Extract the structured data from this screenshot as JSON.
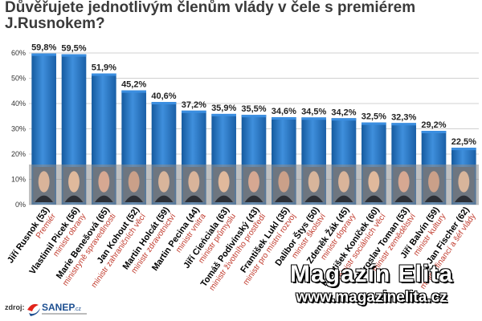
{
  "title": "Důvěřujete jednotlivým členům vlády v čele s premiérem J.Rusnokem?",
  "colors": {
    "bar": "#1f6bb8",
    "bar_top": "#3b8ee0",
    "photo_band": "#8c8c8c",
    "name": "#000000",
    "role": "#c0392b"
  },
  "chart_data": {
    "type": "bar",
    "title": "Důvěřujete jednotlivým členům vlády v čele s premiérem J.Rusnokem?",
    "ylim": [
      0,
      60
    ],
    "yticks": [
      "0%",
      "10%",
      "20%",
      "30%",
      "40%",
      "50%",
      "60%"
    ],
    "grid": true,
    "categories": [
      "Jiří Rusnok (53)",
      "Vlastimil Picek (56)",
      "Marie Benešová (65)",
      "Jan Kohout (52)",
      "Martin Holcát (59)",
      "Martin Pecina (44)",
      "Jiří Cieńciala (63)",
      "Tomáš Podivínský (43)",
      "František Lukl (35)",
      "Dalibor Štys (50)",
      "Zdeněk Žák (45)",
      "František Koníček (60)",
      "Miroslav Toman (53)",
      "Jiří Balvín (59)",
      "Jan Fischer (62)"
    ],
    "roles": [
      "Premiér",
      "ministr obrany",
      "ministryně spravedlnosti",
      "ministr zahraničních věcí",
      "ministr zdravotnictví",
      "ministr vnitra",
      "ministr průmyslu",
      "ministr životního prostředí",
      "ministr pro místní rozvoj",
      "ministr školství",
      "ministr dopravy",
      "ministr sociálních věcí",
      "ministr zemědělství",
      "ministr kultury",
      "ministr financí a šéf vlády"
    ],
    "values": [
      59.8,
      59.5,
      51.9,
      45.2,
      40.6,
      37.2,
      35.9,
      35.5,
      34.6,
      34.5,
      34.2,
      32.5,
      32.3,
      29.2,
      22.5
    ],
    "value_labels": [
      "59,8%",
      "59,5%",
      "51,9%",
      "45,2%",
      "40,6%",
      "37,2%",
      "35,9%",
      "35,5%",
      "34,6%",
      "34,5%",
      "34,2%",
      "32,5%",
      "32,3%",
      "29,2%",
      "22,5%"
    ]
  },
  "watermark": {
    "line1": "Magazín Elita",
    "line2": "www.magazinelita.cz"
  },
  "source": {
    "label": "zdroj:",
    "logo_text": "SANEP",
    "logo_suffix": ".cz"
  }
}
